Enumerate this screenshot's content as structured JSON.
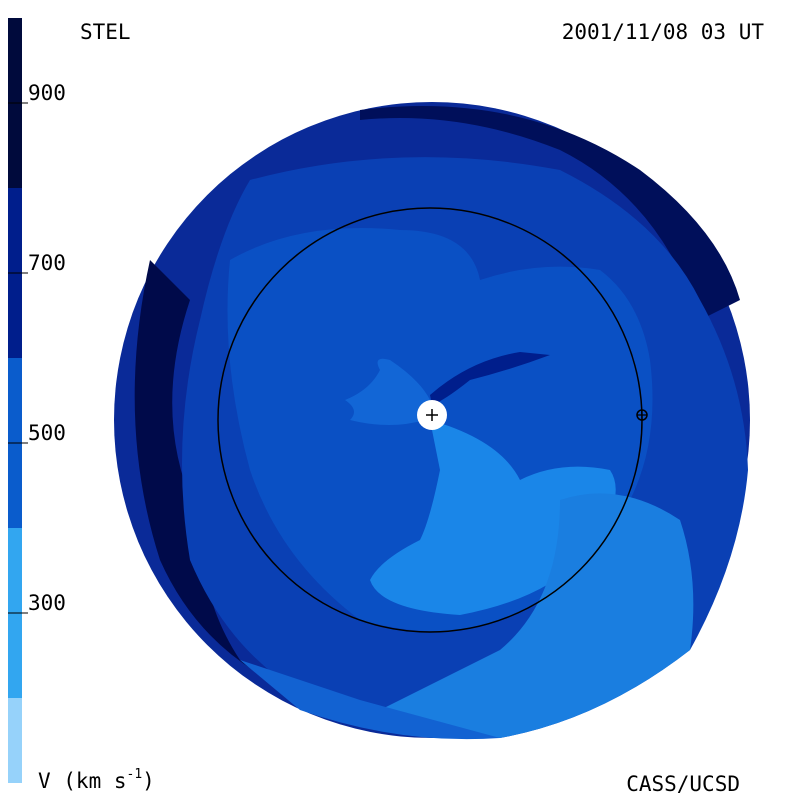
{
  "chart_data": {
    "type": "colorbar-map",
    "title": "STEL",
    "date": "2001/11/08 03 UT",
    "axis_label": {
      "text": "V (km s",
      "superscript": "-1",
      "suffix": ")"
    },
    "credit": "CASS/UCSD",
    "ylim": [
      100,
      1000
    ],
    "yticks": [
      300,
      500,
      700,
      900
    ],
    "bands": [
      {
        "from": 100,
        "to": 200,
        "color": "#96d2fa"
      },
      {
        "from": 200,
        "to": 400,
        "color": "#32a6f0"
      },
      {
        "from": 400,
        "to": 600,
        "color": "#0a5ccc"
      },
      {
        "from": 600,
        "to": 800,
        "color": "#001e8c"
      },
      {
        "from": 800,
        "to": 1000,
        "color": "#000a3c"
      }
    ]
  }
}
